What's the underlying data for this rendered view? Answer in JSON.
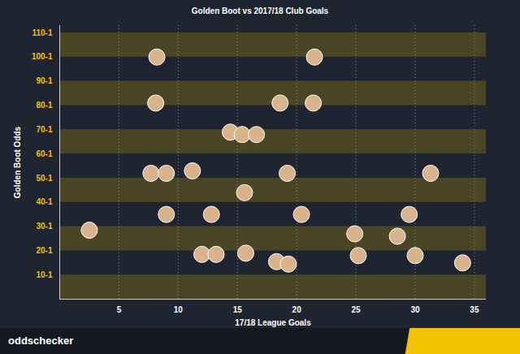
{
  "chart_data": {
    "type": "scatter",
    "title": "Golden Boot vs 2017/18 Club Goals",
    "x_label": "17/18 League Goals",
    "y_label": "Golden Boot Odds",
    "caption": "oddschecker",
    "x": [
      8.2,
      21.5,
      8.1,
      18.6,
      21.4,
      14.4,
      15.4,
      16.6,
      7.7,
      9.0,
      11.2,
      19.2,
      31.3,
      15.6,
      9.0,
      12.8,
      20.4,
      29.5,
      2.5,
      24.9,
      28.5,
      12.0,
      13.2,
      15.7,
      18.3,
      19.3,
      25.2,
      30.0,
      34.0
    ],
    "values": [
      100,
      100,
      81,
      81,
      81,
      69,
      68,
      68,
      52,
      52,
      53,
      52,
      52,
      44,
      35,
      35,
      35,
      35,
      28.5,
      27,
      26,
      18.5,
      18.5,
      19,
      15.5,
      14.5,
      18,
      18,
      15
    ],
    "xlim": [
      0,
      36
    ],
    "xticks": [
      5,
      10,
      15,
      20,
      25,
      30,
      35
    ],
    "ylim": [
      0,
      113
    ],
    "yticks": [
      {
        "value": 10,
        "label": "10-1"
      },
      {
        "value": 20,
        "label": "20-1"
      },
      {
        "value": 30,
        "label": "30-1"
      },
      {
        "value": 40,
        "label": "40-1"
      },
      {
        "value": 50,
        "label": "50-1"
      },
      {
        "value": 60,
        "label": "60-1"
      },
      {
        "value": 70,
        "label": "70-1"
      },
      {
        "value": 80,
        "label": "80-1"
      },
      {
        "value": 90,
        "label": "90-1"
      },
      {
        "value": 100,
        "label": "100-1"
      },
      {
        "value": 110,
        "label": "110-1"
      }
    ],
    "grid": true,
    "color": "#d9b38c",
    "marker": "circle"
  }
}
